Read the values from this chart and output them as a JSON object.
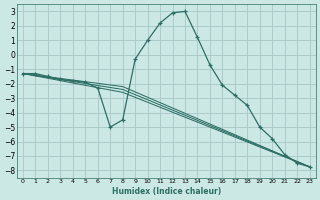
{
  "xlabel": "Humidex (Indice chaleur)",
  "bg_color": "#cce8e5",
  "grid_color": "#aaccca",
  "line_color": "#2d6e65",
  "xlim": [
    -0.5,
    23.5
  ],
  "ylim": [
    -8.5,
    3.5
  ],
  "xticks": [
    0,
    1,
    2,
    3,
    4,
    5,
    6,
    7,
    8,
    9,
    10,
    11,
    12,
    13,
    14,
    15,
    16,
    17,
    18,
    19,
    20,
    21,
    22,
    23
  ],
  "yticks": [
    -8,
    -7,
    -6,
    -5,
    -4,
    -3,
    -2,
    -1,
    0,
    1,
    2,
    3
  ],
  "main_x": [
    0,
    1,
    2,
    3,
    4,
    5,
    6,
    7,
    8,
    9,
    10,
    11,
    12,
    13,
    14,
    15,
    16,
    17,
    18,
    19,
    20,
    21,
    22,
    23
  ],
  "main_y": [
    -1.3,
    -1.3,
    -1.5,
    -1.7,
    -1.8,
    -1.9,
    -2.3,
    -5.0,
    -4.5,
    -0.3,
    1.0,
    2.2,
    2.9,
    3.0,
    1.2,
    -0.7,
    -2.1,
    -2.8,
    -3.5,
    -5.0,
    -5.8,
    -6.9,
    -7.5,
    -7.75
  ],
  "trend1": {
    "x": [
      0,
      8,
      23
    ],
    "y": [
      -1.3,
      -2.2,
      -7.75
    ]
  },
  "trend2": {
    "x": [
      0,
      8,
      23
    ],
    "y": [
      -1.3,
      -2.4,
      -7.75
    ]
  },
  "trend3": {
    "x": [
      0,
      8,
      23
    ],
    "y": [
      -1.3,
      -2.6,
      -7.75
    ]
  }
}
